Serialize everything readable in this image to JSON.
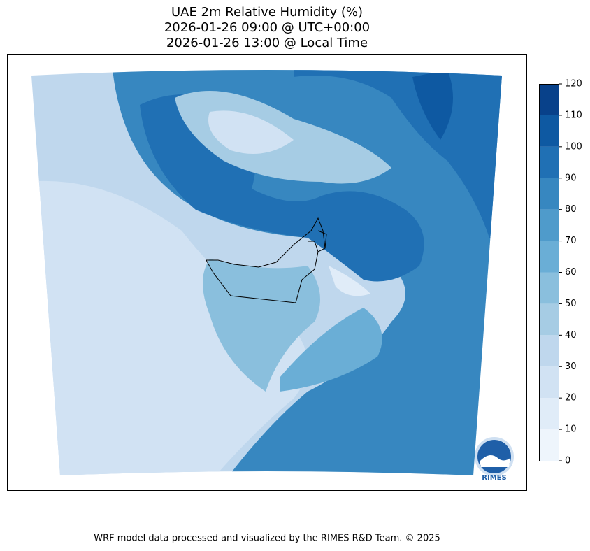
{
  "title": [
    "UAE 2m Relative Humidity (%)",
    "2026-01-26 09:00 @ UTC+00:00",
    "2026-01-26 13:00 @ Local Time"
  ],
  "colorbar": {
    "levels": [
      0,
      10,
      20,
      30,
      40,
      50,
      60,
      70,
      80,
      90,
      100,
      110,
      120
    ],
    "colors": [
      "#eef5fc",
      "#e0ecf8",
      "#d1e2f3",
      "#bfd7ed",
      "#a6cce4",
      "#8abfdd",
      "#6aaed6",
      "#4f9bcb",
      "#3787c0",
      "#2070b4",
      "#0e59a2",
      "#08418a"
    ]
  },
  "logo": "RIMES",
  "footer": "WRF model data processed and visualized by the RIMES R&D Team. © 2025"
}
